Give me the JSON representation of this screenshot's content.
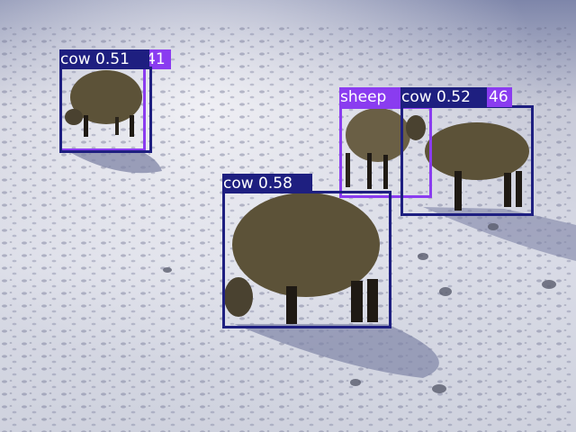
{
  "image": {
    "description_colors": {
      "snow_light": "#e6e8f0",
      "snow_shadow": "#9fa3bd",
      "sheep_wool": "#5c5238",
      "sheep_legs": "#1f1a14"
    }
  },
  "detections": [
    {
      "id": "det1",
      "label_text": "sheep",
      "color": "#8a3cf0"
    },
    {
      "id": "det2",
      "label_text": "cow 0.51",
      "color": "#8a3cf0",
      "overlap_suffix": "41"
    },
    {
      "id": "det3",
      "label_text": "cow 0.51",
      "color": "#1e1f80"
    },
    {
      "id": "det4",
      "label_text": "cow 0.52",
      "color": "#1e1f80",
      "overlap_suffix": "46"
    },
    {
      "id": "det5",
      "label_text": "cow 0.58",
      "color": "#1e1f80"
    }
  ]
}
